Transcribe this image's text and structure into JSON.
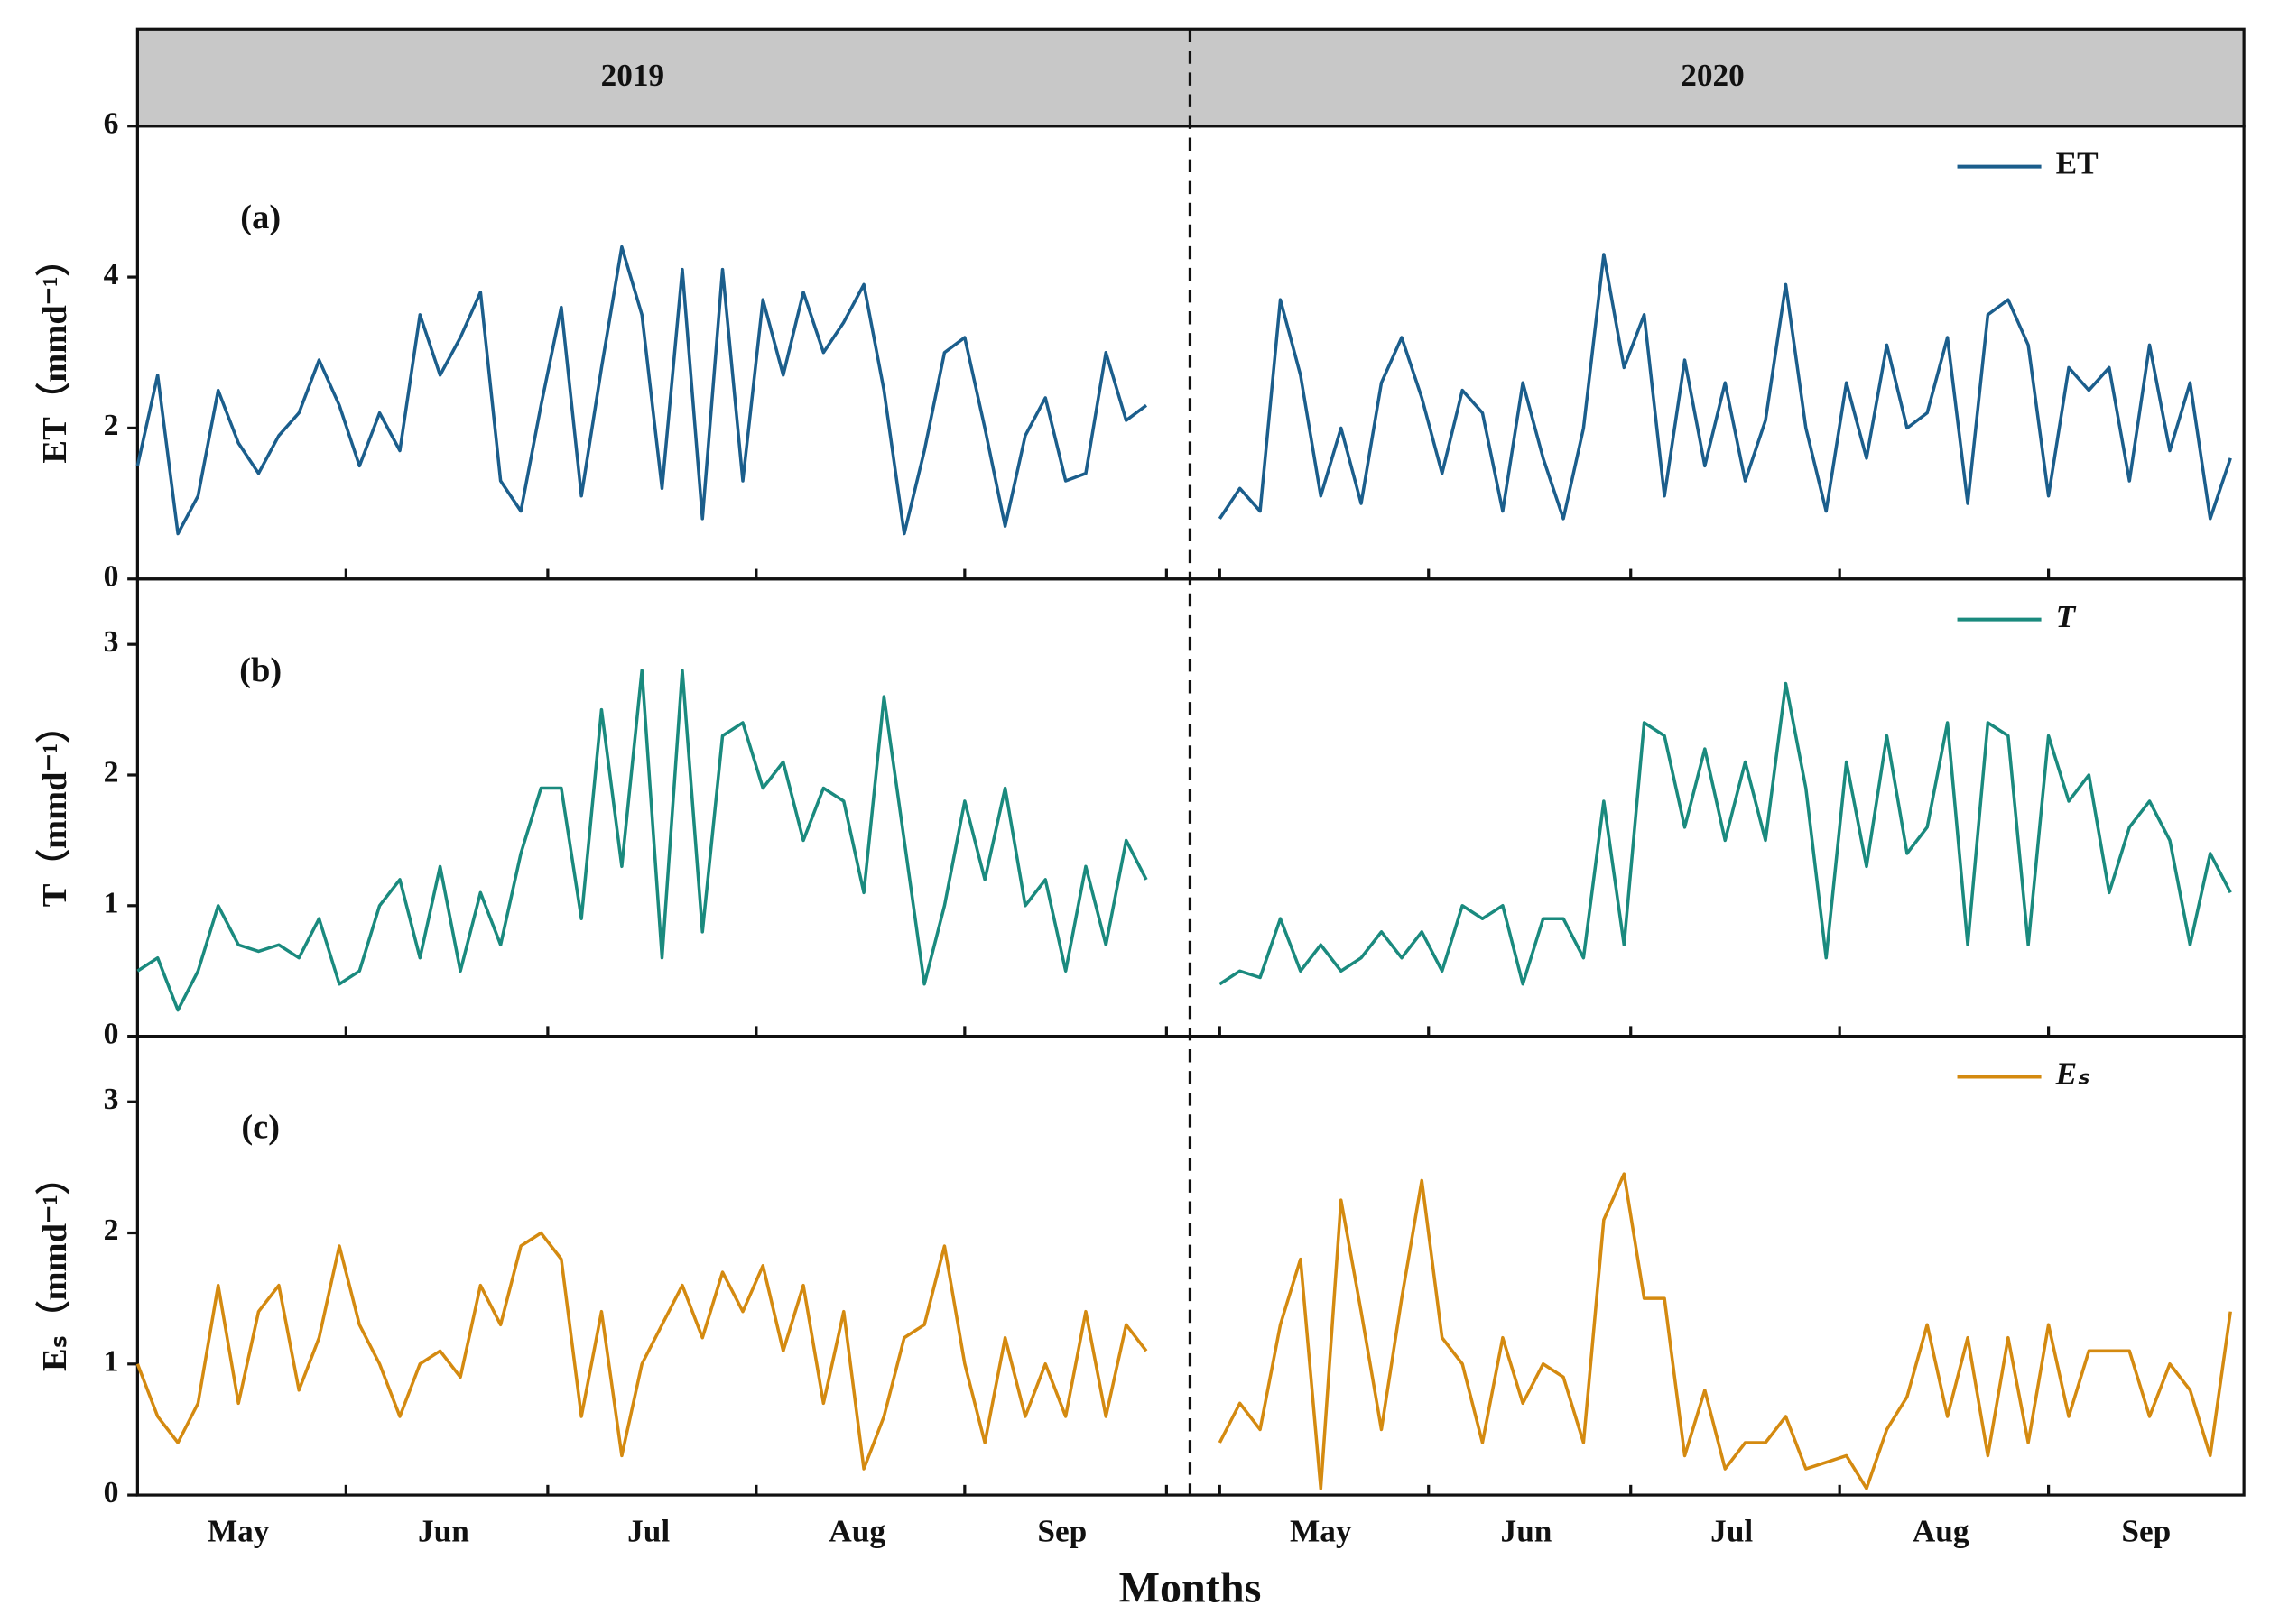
{
  "header": {
    "years": [
      "2019",
      "2020"
    ]
  },
  "x_axis": {
    "label": "Months",
    "xlim": [
      [
        121,
        277.5
      ],
      [
        117.6,
        274
      ]
    ],
    "xticks": [
      [
        152,
        182,
        213,
        244,
        274
      ],
      [
        122,
        153,
        183,
        214,
        245
      ]
    ],
    "xtick_labels": [
      [
        {
          "value": 136,
          "label": "May"
        },
        {
          "value": 166.5,
          "label": "Jun"
        },
        {
          "value": 197,
          "label": "Jul"
        },
        {
          "value": 228,
          "label": "Aug"
        },
        {
          "value": 258.5,
          "label": "Sep"
        }
      ],
      [
        {
          "value": 137,
          "label": "May"
        },
        {
          "value": 167.5,
          "label": "Jun"
        },
        {
          "value": 198,
          "label": "Jul"
        },
        {
          "value": 229,
          "label": "Aug"
        },
        {
          "value": 259.5,
          "label": "Sep"
        }
      ]
    ]
  },
  "x": [
    [
      121,
      124,
      127,
      130,
      133,
      136,
      139,
      142,
      145,
      148,
      151,
      154,
      157,
      160,
      163,
      166,
      169,
      172,
      175,
      178,
      181,
      184,
      187,
      190,
      193,
      196,
      199,
      202,
      205,
      208,
      211,
      214,
      217,
      220,
      223,
      226,
      229,
      232,
      235,
      238,
      241,
      244,
      247,
      250,
      253,
      256,
      259,
      262,
      265,
      268,
      271
    ],
    [
      122,
      125,
      128,
      131,
      134,
      137,
      140,
      143,
      146,
      149,
      152,
      155,
      158,
      161,
      164,
      167,
      170,
      173,
      176,
      179,
      182,
      185,
      188,
      191,
      194,
      197,
      200,
      203,
      206,
      209,
      212,
      215,
      218,
      221,
      224,
      227,
      230,
      233,
      236,
      239,
      242,
      245,
      248,
      251,
      254,
      257,
      260,
      263,
      266,
      269,
      272
    ]
  ],
  "chart_data": [
    {
      "type": "line",
      "panel_label": "(a)",
      "ylabel": "ET（mmd⁻¹）",
      "ylim": [
        0,
        6
      ],
      "yticks": [
        0,
        2,
        4,
        6
      ],
      "series": [
        {
          "name": "ET",
          "color": "#1b5e8c",
          "values": [
            [
              1.5,
              2.7,
              0.6,
              1.1,
              2.5,
              1.8,
              1.4,
              1.9,
              2.2,
              2.9,
              2.3,
              1.5,
              2.2,
              1.7,
              3.5,
              2.7,
              3.2,
              3.8,
              1.3,
              0.9,
              2.3,
              3.6,
              1.1,
              2.8,
              4.4,
              3.5,
              1.2,
              4.1,
              0.8,
              4.1,
              1.3,
              3.7,
              2.7,
              3.8,
              3.0,
              3.4,
              3.9,
              2.5,
              0.6,
              1.7,
              3.0,
              3.2,
              2.0,
              0.7,
              1.9,
              2.4,
              1.3,
              1.4,
              3.0,
              2.1,
              2.3
            ],
            [
              0.8,
              1.2,
              0.9,
              3.7,
              2.7,
              1.1,
              2.0,
              1.0,
              2.6,
              3.2,
              2.4,
              1.4,
              2.5,
              2.2,
              0.9,
              2.6,
              1.6,
              0.8,
              2.0,
              4.3,
              2.8,
              3.5,
              1.1,
              2.9,
              1.5,
              2.6,
              1.3,
              2.1,
              3.9,
              2.0,
              0.9,
              2.6,
              1.6,
              3.1,
              2.0,
              2.2,
              3.2,
              1.0,
              3.5,
              3.7,
              3.1,
              1.1,
              2.8,
              2.5,
              2.8,
              1.3,
              3.1,
              1.7,
              2.6,
              0.8,
              1.6
            ]
          ]
        }
      ]
    },
    {
      "type": "line",
      "panel_label": "(b)",
      "ylabel": "T（mmd⁻¹）",
      "ylim": [
        0,
        3.5
      ],
      "yticks": [
        0,
        1,
        2,
        3
      ],
      "series": [
        {
          "name": "T",
          "color": "#1a8a7e",
          "values": [
            [
              0.5,
              0.6,
              0.2,
              0.5,
              1.0,
              0.7,
              0.65,
              0.7,
              0.6,
              0.9,
              0.4,
              0.5,
              1.0,
              1.2,
              0.6,
              1.3,
              0.5,
              1.1,
              0.7,
              1.4,
              1.9,
              1.9,
              0.9,
              2.5,
              1.3,
              2.8,
              0.6,
              2.8,
              0.8,
              2.3,
              2.4,
              1.9,
              2.1,
              1.5,
              1.9,
              1.8,
              1.1,
              2.6,
              1.5,
              0.4,
              1.0,
              1.8,
              1.2,
              1.9,
              1.0,
              1.2,
              0.5,
              1.3,
              0.7,
              1.5,
              1.2
            ],
            [
              0.4,
              0.5,
              0.45,
              0.9,
              0.5,
              0.7,
              0.5,
              0.6,
              0.8,
              0.6,
              0.8,
              0.5,
              1.0,
              0.9,
              1.0,
              0.4,
              0.9,
              0.9,
              0.6,
              1.8,
              0.7,
              2.4,
              2.3,
              1.6,
              2.2,
              1.5,
              2.1,
              1.5,
              2.7,
              1.9,
              0.6,
              2.1,
              1.3,
              2.3,
              1.4,
              1.6,
              2.4,
              0.7,
              2.4,
              2.3,
              0.7,
              2.3,
              1.8,
              2.0,
              1.1,
              1.6,
              1.8,
              1.5,
              0.7,
              1.4,
              1.1
            ]
          ]
        }
      ]
    },
    {
      "type": "line",
      "panel_label": "(c)",
      "ylabel": "Eₛ（mmd⁻¹）",
      "ylim": [
        0,
        3.5
      ],
      "yticks": [
        0,
        1,
        2,
        3
      ],
      "series": [
        {
          "name": "Eₛ",
          "color": "#d48a10",
          "values": [
            [
              1.0,
              0.6,
              0.4,
              0.7,
              1.6,
              0.7,
              1.4,
              1.6,
              0.8,
              1.2,
              1.9,
              1.3,
              1.0,
              0.6,
              1.0,
              1.1,
              0.9,
              1.6,
              1.3,
              1.9,
              2.0,
              1.8,
              0.6,
              1.4,
              0.3,
              1.0,
              1.3,
              1.6,
              1.2,
              1.7,
              1.4,
              1.75,
              1.1,
              1.6,
              0.7,
              1.4,
              0.2,
              0.6,
              1.2,
              1.3,
              1.9,
              1.0,
              0.4,
              1.2,
              0.6,
              1.0,
              0.6,
              1.4,
              0.6,
              1.3,
              1.1
            ],
            [
              0.4,
              0.7,
              0.5,
              1.3,
              1.8,
              0.05,
              2.25,
              1.4,
              0.5,
              1.5,
              2.4,
              1.2,
              1.0,
              0.4,
              1.2,
              0.7,
              1.0,
              0.9,
              0.4,
              2.1,
              2.45,
              1.5,
              1.5,
              0.3,
              0.8,
              0.2,
              0.4,
              0.4,
              0.6,
              0.2,
              0.25,
              0.3,
              0.05,
              0.5,
              0.75,
              1.3,
              0.6,
              1.2,
              0.3,
              1.2,
              0.4,
              1.3,
              0.6,
              1.1,
              1.1,
              1.1,
              0.6,
              1.0,
              0.8,
              0.3,
              1.4
            ]
          ]
        }
      ]
    }
  ]
}
